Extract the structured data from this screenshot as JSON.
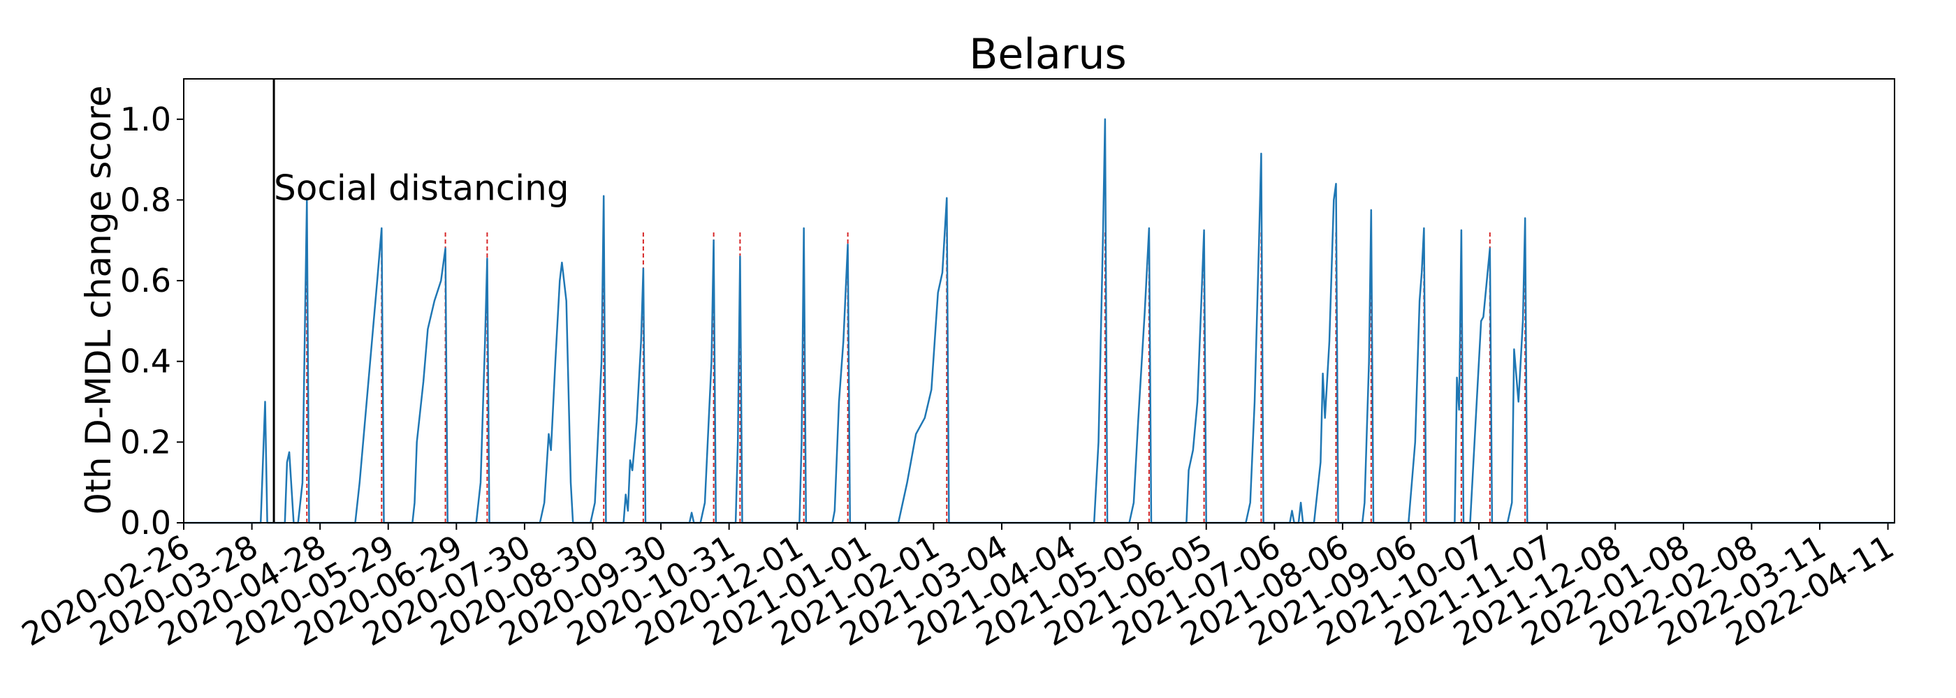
{
  "chart_data": {
    "type": "line",
    "title": "Belarus",
    "xlabel": "",
    "ylabel": "0th D-MDL change score",
    "ylim": [
      0,
      1.1
    ],
    "xlim": [
      "2020-02-26",
      "2022-04-14"
    ],
    "grid": false,
    "line_color": "#1f77b4",
    "change_line_color": "#d62728",
    "event_line_color": "#000000",
    "x_ticks": [
      "2020-02-26",
      "2020-03-28",
      "2020-04-28",
      "2020-05-29",
      "2020-06-29",
      "2020-07-30",
      "2020-08-30",
      "2020-09-30",
      "2020-10-31",
      "2020-12-01",
      "2021-01-01",
      "2021-02-01",
      "2021-03-04",
      "2021-04-04",
      "2021-05-05",
      "2021-06-05",
      "2021-07-06",
      "2021-08-06",
      "2021-09-06",
      "2021-10-07",
      "2021-11-07",
      "2021-12-08",
      "2022-01-08",
      "2022-02-08",
      "2022-03-11",
      "2022-04-11"
    ],
    "y_ticks": [
      0.0,
      0.2,
      0.4,
      0.6,
      0.8,
      1.0
    ],
    "y_tick_labels": [
      "0.0",
      "0.2",
      "0.4",
      "0.6",
      "0.8",
      "1.0"
    ],
    "event": {
      "date": "2020-04-07",
      "label": "Social distancing"
    },
    "series": [
      {
        "points": [
          [
            "2020-02-26",
            0
          ],
          [
            "2020-04-01",
            0
          ],
          [
            "2020-04-03",
            0.3
          ],
          [
            "2020-04-04",
            0
          ],
          [
            "2020-04-12",
            0
          ],
          [
            "2020-04-13",
            0.15
          ],
          [
            "2020-04-14",
            0.175
          ],
          [
            "2020-04-16",
            0
          ],
          [
            "2020-04-18",
            0
          ],
          [
            "2020-04-20",
            0.1
          ],
          [
            "2020-04-22",
            0.8
          ],
          [
            "2020-04-23",
            0
          ],
          [
            "2020-05-14",
            0
          ],
          [
            "2020-05-16",
            0.1
          ],
          [
            "2020-05-20",
            0.35
          ],
          [
            "2020-05-24",
            0.6
          ],
          [
            "2020-05-26",
            0.73
          ],
          [
            "2020-05-27",
            0
          ],
          [
            "2020-06-09",
            0
          ],
          [
            "2020-06-10",
            0.05
          ],
          [
            "2020-06-11",
            0.2
          ],
          [
            "2020-06-14",
            0.35
          ],
          [
            "2020-06-16",
            0.48
          ],
          [
            "2020-06-19",
            0.55
          ],
          [
            "2020-06-22",
            0.6
          ],
          [
            "2020-06-24",
            0.68
          ],
          [
            "2020-06-25",
            0
          ],
          [
            "2020-07-08",
            0
          ],
          [
            "2020-07-10",
            0.1
          ],
          [
            "2020-07-12",
            0.45
          ],
          [
            "2020-07-13",
            0.655
          ],
          [
            "2020-07-14",
            0
          ],
          [
            "2020-08-06",
            0
          ],
          [
            "2020-08-08",
            0.05
          ],
          [
            "2020-08-10",
            0.22
          ],
          [
            "2020-08-11",
            0.18
          ],
          [
            "2020-08-13",
            0.4
          ],
          [
            "2020-08-15",
            0.6
          ],
          [
            "2020-08-16",
            0.645
          ],
          [
            "2020-08-18",
            0.55
          ],
          [
            "2020-08-20",
            0.1
          ],
          [
            "2020-08-21",
            0
          ],
          [
            "2020-08-29",
            0
          ],
          [
            "2020-08-31",
            0.05
          ],
          [
            "2020-09-03",
            0.4
          ],
          [
            "2020-09-04",
            0.81
          ],
          [
            "2020-09-05",
            0
          ],
          [
            "2020-09-13",
            0
          ],
          [
            "2020-09-14",
            0.07
          ],
          [
            "2020-09-15",
            0.03
          ],
          [
            "2020-09-16",
            0.155
          ],
          [
            "2020-09-17",
            0.13
          ],
          [
            "2020-09-19",
            0.25
          ],
          [
            "2020-09-21",
            0.45
          ],
          [
            "2020-09-22",
            0.63
          ],
          [
            "2020-09-23",
            0
          ],
          [
            "2020-10-13",
            0
          ],
          [
            "2020-10-14",
            0.025
          ],
          [
            "2020-10-15",
            0
          ],
          [
            "2020-10-18",
            0
          ],
          [
            "2020-10-20",
            0.05
          ],
          [
            "2020-10-23",
            0.4
          ],
          [
            "2020-10-24",
            0.7
          ],
          [
            "2020-10-25",
            0
          ],
          [
            "2020-11-03",
            0
          ],
          [
            "2020-11-04",
            0.2
          ],
          [
            "2020-11-05",
            0.66
          ],
          [
            "2020-11-06",
            0
          ],
          [
            "2020-12-02",
            0
          ],
          [
            "2020-12-03",
            0.2
          ],
          [
            "2020-12-04",
            0.73
          ],
          [
            "2020-12-05",
            0
          ],
          [
            "2020-12-17",
            0
          ],
          [
            "2020-12-18",
            0.03
          ],
          [
            "2020-12-20",
            0.3
          ],
          [
            "2020-12-22",
            0.45
          ],
          [
            "2020-12-24",
            0.69
          ],
          [
            "2020-12-25",
            0
          ],
          [
            "2021-01-16",
            0
          ],
          [
            "2021-01-20",
            0.1
          ],
          [
            "2021-01-24",
            0.22
          ],
          [
            "2021-01-28",
            0.26
          ],
          [
            "2021-01-31",
            0.33
          ],
          [
            "2021-02-03",
            0.57
          ],
          [
            "2021-02-05",
            0.62
          ],
          [
            "2021-02-07",
            0.805
          ],
          [
            "2021-02-08",
            0
          ],
          [
            "2021-04-15",
            0
          ],
          [
            "2021-04-17",
            0.2
          ],
          [
            "2021-04-19",
            0.7
          ],
          [
            "2021-04-20",
            1.0
          ],
          [
            "2021-04-21",
            0
          ],
          [
            "2021-05-01",
            0
          ],
          [
            "2021-05-03",
            0.05
          ],
          [
            "2021-05-05",
            0.25
          ],
          [
            "2021-05-08",
            0.52
          ],
          [
            "2021-05-10",
            0.73
          ],
          [
            "2021-05-11",
            0
          ],
          [
            "2021-05-27",
            0
          ],
          [
            "2021-05-28",
            0.13
          ],
          [
            "2021-05-30",
            0.18
          ],
          [
            "2021-06-01",
            0.3
          ],
          [
            "2021-06-03",
            0.58
          ],
          [
            "2021-06-04",
            0.725
          ],
          [
            "2021-06-05",
            0
          ],
          [
            "2021-06-23",
            0
          ],
          [
            "2021-06-25",
            0.05
          ],
          [
            "2021-06-27",
            0.3
          ],
          [
            "2021-06-29",
            0.7
          ],
          [
            "2021-06-30",
            0.915
          ],
          [
            "2021-07-01",
            0
          ],
          [
            "2021-07-13",
            0
          ],
          [
            "2021-07-14",
            0.03
          ],
          [
            "2021-07-15",
            0
          ],
          [
            "2021-07-17",
            0
          ],
          [
            "2021-07-18",
            0.05
          ],
          [
            "2021-07-19",
            0
          ],
          [
            "2021-07-24",
            0
          ],
          [
            "2021-07-27",
            0.15
          ],
          [
            "2021-07-28",
            0.37
          ],
          [
            "2021-07-29",
            0.26
          ],
          [
            "2021-07-31",
            0.45
          ],
          [
            "2021-08-02",
            0.8
          ],
          [
            "2021-08-03",
            0.84
          ],
          [
            "2021-08-04",
            0
          ],
          [
            "2021-08-15",
            0
          ],
          [
            "2021-08-16",
            0.05
          ],
          [
            "2021-08-18",
            0.4
          ],
          [
            "2021-08-19",
            0.775
          ],
          [
            "2021-08-20",
            0
          ],
          [
            "2021-09-05",
            0
          ],
          [
            "2021-09-08",
            0.2
          ],
          [
            "2021-09-10",
            0.55
          ],
          [
            "2021-09-11",
            0.62
          ],
          [
            "2021-09-12",
            0.73
          ],
          [
            "2021-09-13",
            0
          ],
          [
            "2021-09-26",
            0
          ],
          [
            "2021-09-27",
            0.36
          ],
          [
            "2021-09-28",
            0.28
          ],
          [
            "2021-09-29",
            0.725
          ],
          [
            "2021-09-30",
            0
          ],
          [
            "2021-10-03",
            0
          ],
          [
            "2021-10-06",
            0.3
          ],
          [
            "2021-10-08",
            0.5
          ],
          [
            "2021-10-09",
            0.51
          ],
          [
            "2021-10-12",
            0.68
          ],
          [
            "2021-10-13",
            0
          ],
          [
            "2021-10-20",
            0
          ],
          [
            "2021-10-22",
            0.05
          ],
          [
            "2021-10-23",
            0.43
          ],
          [
            "2021-10-25",
            0.3
          ],
          [
            "2021-10-27",
            0.5
          ],
          [
            "2021-10-28",
            0.755
          ],
          [
            "2021-10-29",
            0
          ],
          [
            "2022-04-14",
            0
          ]
        ]
      }
    ],
    "change_points": [
      "2020-04-22",
      "2020-05-26",
      "2020-06-24",
      "2020-07-13",
      "2020-09-04",
      "2020-09-22",
      "2020-10-24",
      "2020-11-05",
      "2020-12-04",
      "2020-12-24",
      "2021-02-07",
      "2021-04-20",
      "2021-05-10",
      "2021-06-04",
      "2021-06-30",
      "2021-08-03",
      "2021-08-19",
      "2021-09-12",
      "2021-09-29",
      "2021-10-12",
      "2021-10-28"
    ]
  }
}
